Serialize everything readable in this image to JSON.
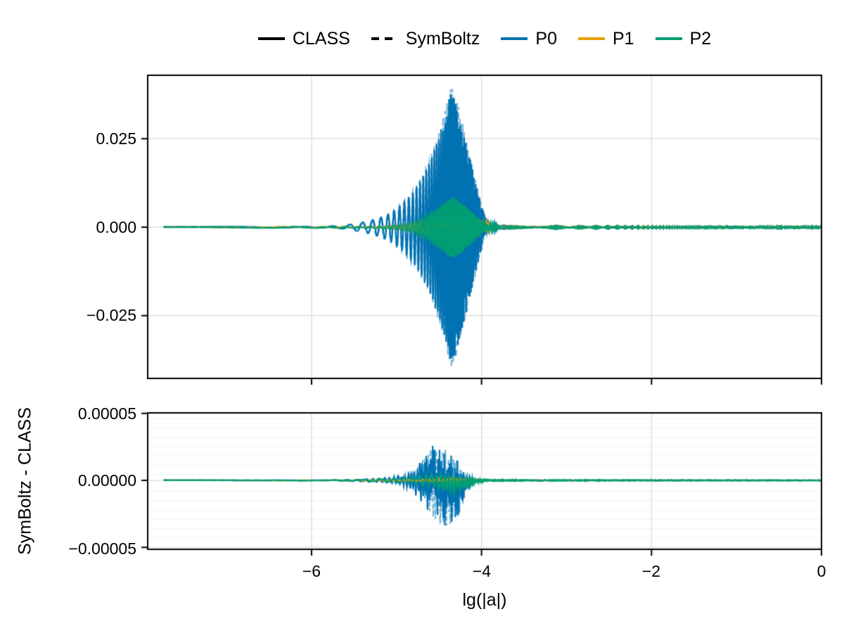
{
  "legend": {
    "entries": [
      {
        "label": "CLASS",
        "color": "#000000",
        "style": "solid"
      },
      {
        "label": "SymBoltz",
        "color": "#000000",
        "style": "dashed"
      },
      {
        "label": "P0",
        "color": "#0072B2",
        "style": "solid"
      },
      {
        "label": "P1",
        "color": "#E69F00",
        "style": "solid"
      },
      {
        "label": "P2",
        "color": "#009E73",
        "style": "solid"
      }
    ]
  },
  "colors": {
    "p0": "#0072B2",
    "p1": "#E69F00",
    "p2": "#009E73",
    "grid_major": "#dfdfdf",
    "grid_minor": "#f3f3f3",
    "frame": "#000000"
  },
  "chart_data": {
    "type": "line",
    "x_axis": {
      "label": "lg(|a|)",
      "range": [
        -7.93,
        0
      ],
      "data_start": -7.74,
      "ticks": [
        -6,
        -4,
        -2,
        0
      ],
      "tick_labels": [
        "−6",
        "−4",
        "−2",
        "0"
      ]
    },
    "oscillation": {
      "ref_x": -5.3,
      "period_at_ref": 0.11,
      "chirp_rate": 0.78
    },
    "panels": [
      {
        "name": "comparison",
        "y_axis": {
          "range": [
            -0.0427,
            0.0429
          ],
          "ticks": [
            0.025,
            0.0,
            -0.025
          ],
          "tick_labels": [
            "0.025",
            "0.000",
            "−0.025"
          ]
        },
        "series": [
          {
            "name": "P0",
            "color": "#0072B2",
            "phase_offset": 0.0,
            "envelope": [
              [
                -7.74,
                0.0001
              ],
              [
                -5.9,
                0.00015
              ],
              [
                -5.65,
                0.0004
              ],
              [
                -5.5,
                0.0009
              ],
              [
                -5.35,
                0.0016
              ],
              [
                -5.2,
                0.0026
              ],
              [
                -5.05,
                0.0042
              ],
              [
                -4.9,
                0.0072
              ],
              [
                -4.8,
                0.01
              ],
              [
                -4.7,
                0.014
              ],
              [
                -4.6,
                0.019
              ],
              [
                -4.5,
                0.026
              ],
              [
                -4.42,
                0.032
              ],
              [
                -4.36,
                0.039
              ],
              [
                -4.3,
                0.0355
              ],
              [
                -4.24,
                0.03
              ],
              [
                -4.18,
                0.024
              ],
              [
                -4.1,
                0.016
              ],
              [
                -4.02,
                0.008
              ],
              [
                -3.96,
                0.003
              ],
              [
                -3.9,
                0.0008
              ],
              [
                -3.8,
                0.00012
              ],
              [
                0,
                0.00012
              ]
            ]
          },
          {
            "name": "P1",
            "color": "#E69F00",
            "phase_offset": 2.1,
            "envelope": [
              [
                -7.74,
                8e-05
              ],
              [
                -5.2,
                0.0001
              ],
              [
                -5.0,
                0.0006
              ],
              [
                -4.8,
                0.0012
              ],
              [
                -4.65,
                0.0018
              ],
              [
                -4.5,
                0.0022
              ],
              [
                -4.35,
                0.0022
              ],
              [
                -4.2,
                0.0018
              ],
              [
                -4.05,
                0.001
              ],
              [
                -3.95,
                0.0005
              ],
              [
                -3.85,
                0.0001
              ],
              [
                0,
                0.0001
              ]
            ]
          },
          {
            "name": "P2",
            "color": "#009E73",
            "phase_offset": 1.2,
            "envelope": [
              [
                -7.74,
                0.0001
              ],
              [
                -5.3,
                0.00012
              ],
              [
                -5.0,
                0.0006
              ],
              [
                -4.85,
                0.0012
              ],
              [
                -4.7,
                0.0025
              ],
              [
                -4.6,
                0.004
              ],
              [
                -4.5,
                0.0058
              ],
              [
                -4.4,
                0.0078
              ],
              [
                -4.33,
                0.0086
              ],
              [
                -4.25,
                0.0074
              ],
              [
                -4.15,
                0.0052
              ],
              [
                -4.05,
                0.0028
              ],
              [
                -3.97,
                0.0012
              ],
              [
                -3.9,
                0.0005
              ],
              [
                -3.8,
                0.00012
              ],
              [
                0,
                0.00012
              ]
            ]
          }
        ]
      },
      {
        "name": "residual",
        "ylabel": "SymBoltz - CLASS",
        "y_axis": {
          "range": [
            -5.14e-05,
            5.04e-05
          ],
          "ticks": [
            5e-05,
            0.0,
            -5e-05
          ],
          "tick_labels": [
            "0.00005",
            "0.00000",
            "−0.00005"
          ]
        },
        "series": [
          {
            "name": "P0",
            "color": "#0072B2",
            "mode": "noisy",
            "envelope": [
              [
                -7.74,
                1.2e-07
              ],
              [
                -5.8,
                1.5e-07
              ],
              [
                -5.5,
                8e-07
              ],
              [
                -5.3,
                1.2e-06
              ],
              [
                -5.1,
                1.8e-06
              ],
              [
                -4.95,
                3.5e-06
              ],
              [
                -4.85,
                6e-06
              ],
              [
                -4.75,
                1.3e-05
              ],
              [
                -4.65,
                2.2e-05
              ],
              [
                -4.55,
                2.9e-05
              ],
              [
                -4.45,
                3.2e-05
              ],
              [
                -4.35,
                2.9e-05
              ],
              [
                -4.28,
                2.3e-05
              ],
              [
                -4.2,
                9e-06
              ],
              [
                -4.12,
                2.5e-06
              ],
              [
                -4.02,
                6e-07
              ],
              [
                -3.9,
                2.5e-07
              ],
              [
                0,
                1.5e-07
              ]
            ],
            "bias": [
              [
                -7.74,
                0
              ],
              [
                -4.65,
                0
              ],
              [
                -4.5,
                -2e-06
              ],
              [
                -4.4,
                -6e-06
              ],
              [
                -4.32,
                -9e-06
              ],
              [
                -4.24,
                -6e-06
              ],
              [
                -4.15,
                -1.5e-06
              ],
              [
                -4.05,
                0
              ],
              [
                0,
                0
              ]
            ]
          },
          {
            "name": "P1",
            "color": "#E69F00",
            "mode": "smooth",
            "envelope": [
              [
                -7.74,
                5e-08
              ],
              [
                -5.0,
                1e-07
              ],
              [
                -4.7,
                8e-07
              ],
              [
                -4.5,
                1.4e-06
              ],
              [
                -4.3,
                1.2e-06
              ],
              [
                -4.1,
                5e-07
              ],
              [
                -3.95,
                1.5e-07
              ],
              [
                0,
                8e-08
              ]
            ],
            "bias": [
              [
                -7.74,
                0
              ],
              [
                0,
                0
              ]
            ]
          },
          {
            "name": "P2",
            "color": "#009E73",
            "mode": "smooth",
            "envelope": [
              [
                -7.74,
                6e-08
              ],
              [
                -5.6,
                1.5e-07
              ],
              [
                -5.3,
                7e-07
              ],
              [
                -5.05,
                1.1e-06
              ],
              [
                -4.85,
                2.2e-06
              ],
              [
                -4.65,
                3.5e-06
              ],
              [
                -4.5,
                4.5e-06
              ],
              [
                -4.35,
                5.5e-06
              ],
              [
                -4.2,
                3.5e-06
              ],
              [
                -4.05,
                1.2e-06
              ],
              [
                -3.92,
                4e-07
              ],
              [
                0,
                1.2e-07
              ]
            ],
            "bias": [
              [
                -7.74,
                0
              ],
              [
                -4.6,
                0
              ],
              [
                -4.45,
                -1.5e-06
              ],
              [
                -4.33,
                -3e-06
              ],
              [
                -4.2,
                -2e-06
              ],
              [
                -4.08,
                -5e-07
              ],
              [
                -3.95,
                0
              ],
              [
                0,
                0
              ]
            ]
          }
        ]
      }
    ]
  }
}
